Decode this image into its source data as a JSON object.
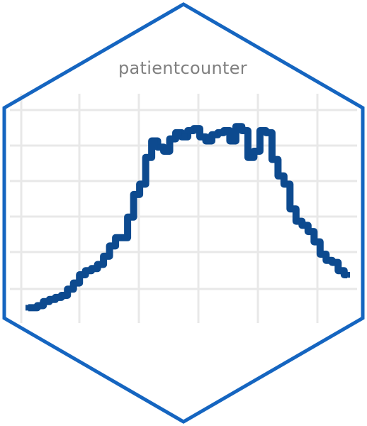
{
  "logo": {
    "title": "patientcounter",
    "colors": {
      "border": "#1565c0",
      "line": "#0d4a8f",
      "grid": "#e8e8e8",
      "title": "#808080",
      "background": "#ffffff"
    }
  },
  "chart_data": {
    "type": "line",
    "title": "",
    "xlabel": "",
    "ylabel": "",
    "grid": true,
    "series": [
      {
        "values": [
          0.04,
          0.04,
          0.05,
          0.07,
          0.08,
          0.09,
          0.1,
          0.13,
          0.16,
          0.2,
          0.22,
          0.23,
          0.25,
          0.29,
          0.34,
          0.38,
          0.38,
          0.48,
          0.59,
          0.64,
          0.77,
          0.85,
          0.82,
          0.8,
          0.86,
          0.89,
          0.87,
          0.9,
          0.91,
          0.87,
          0.85,
          0.88,
          0.89,
          0.9,
          0.85,
          0.92,
          0.9,
          0.77,
          0.8,
          0.9,
          0.89,
          0.76,
          0.68,
          0.64,
          0.52,
          0.46,
          0.44,
          0.41,
          0.36,
          0.3,
          0.27,
          0.26,
          0.22,
          0.2
        ]
      }
    ]
  }
}
